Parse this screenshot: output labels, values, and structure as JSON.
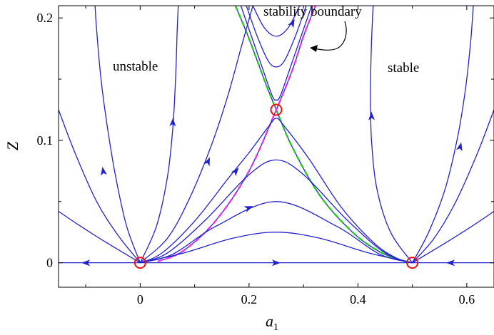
{
  "chart_data": {
    "type": "line",
    "title": "",
    "xlabel": "a",
    "xlabel_subscript": "1",
    "ylabel": "Z",
    "xlim": [
      -0.15,
      0.65
    ],
    "ylim": [
      -0.02,
      0.21
    ],
    "xticks": [
      0,
      0.2,
      0.4,
      0.6
    ],
    "xtick_labels": [
      "0",
      "0.2",
      "0.4",
      "0.6"
    ],
    "yticks": [
      0,
      0.1,
      0.2
    ],
    "ytick_labels": [
      "0",
      "0.1",
      "0.2"
    ],
    "grid": false,
    "colors": {
      "trajectory": "#2222cc",
      "boundary_green": "#22cc22",
      "boundary_magenta": "#ee33ee",
      "fixed_point": "#ee1111"
    },
    "annotations": {
      "unstable": "unstable",
      "stable": "stable",
      "boundary": "stability boundary"
    },
    "fixed_points": [
      {
        "x": 0,
        "y": 0
      },
      {
        "x": 0.25,
        "y": 0.125
      },
      {
        "x": 0.5,
        "y": 0
      }
    ],
    "series": [
      {
        "values": [
          [
            0.175,
            0.21
          ],
          [
            0.2,
            0.183
          ],
          [
            0.23,
            0.147
          ],
          [
            0.25,
            0.125
          ],
          [
            0.28,
            0.094
          ],
          [
            0.33,
            0.055
          ],
          [
            0.39,
            0.025
          ],
          [
            0.44,
            0.009
          ],
          [
            0.48,
            0.002
          ],
          [
            0.5,
            0
          ]
        ],
        "role": "separatrix",
        "dashed": "green"
      },
      {
        "values": [
          [
            0.032,
            0.001
          ],
          [
            0.08,
            0.01
          ],
          [
            0.14,
            0.035
          ],
          [
            0.2,
            0.075
          ],
          [
            0.25,
            0.125
          ],
          [
            0.28,
            0.158
          ],
          [
            0.3,
            0.185
          ],
          [
            0.322,
            0.21
          ]
        ],
        "role": "separatrix",
        "dashed": "magenta"
      },
      {
        "values": [
          [
            0.207,
            0.21
          ],
          [
            0.228,
            0.192
          ],
          [
            0.25,
            0.185
          ],
          [
            0.272,
            0.192
          ],
          [
            0.293,
            0.21
          ]
        ],
        "arrow": [
          0.28,
          0.196
        ]
      },
      {
        "values": [
          [
            0.195,
            0.21
          ],
          [
            0.215,
            0.185
          ],
          [
            0.235,
            0.165
          ],
          [
            0.25,
            0.16
          ],
          [
            0.265,
            0.165
          ],
          [
            0.285,
            0.185
          ],
          [
            0.305,
            0.21
          ]
        ]
      },
      {
        "values": [
          [
            0.185,
            0.21
          ],
          [
            0.22,
            0.165
          ],
          [
            0.242,
            0.137
          ],
          [
            0.25,
            0.133
          ],
          [
            0.258,
            0.137
          ],
          [
            0.28,
            0.165
          ],
          [
            0.315,
            0.21
          ]
        ]
      },
      {
        "values": [
          [
            0,
            0
          ],
          [
            0.04,
            0.008
          ],
          [
            0.1,
            0.034
          ],
          [
            0.16,
            0.068
          ],
          [
            0.2,
            0.09
          ],
          [
            0.237,
            0.112
          ],
          [
            0.25,
            0.118
          ],
          [
            0.264,
            0.112
          ],
          [
            0.31,
            0.085
          ],
          [
            0.37,
            0.045
          ],
          [
            0.43,
            0.016
          ],
          [
            0.47,
            0.004
          ],
          [
            0.5,
            0
          ]
        ],
        "arrow": [
          0.176,
          0.075
        ]
      },
      {
        "values": [
          [
            0,
            0
          ],
          [
            0.05,
            0.008
          ],
          [
            0.12,
            0.035
          ],
          [
            0.2,
            0.072
          ],
          [
            0.25,
            0.084
          ],
          [
            0.3,
            0.072
          ],
          [
            0.38,
            0.035
          ],
          [
            0.45,
            0.008
          ],
          [
            0.5,
            0
          ]
        ]
      },
      {
        "values": [
          [
            0,
            0
          ],
          [
            0.06,
            0.007
          ],
          [
            0.14,
            0.03
          ],
          [
            0.25,
            0.05
          ],
          [
            0.36,
            0.03
          ],
          [
            0.44,
            0.007
          ],
          [
            0.5,
            0
          ]
        ],
        "arrow": [
          0.2,
          0.045
        ]
      },
      {
        "values": [
          [
            0,
            0
          ],
          [
            0.08,
            0.008
          ],
          [
            0.17,
            0.02
          ],
          [
            0.25,
            0.025
          ],
          [
            0.33,
            0.02
          ],
          [
            0.42,
            0.008
          ],
          [
            0.5,
            0
          ]
        ]
      },
      {
        "values": [
          [
            0,
            0
          ],
          [
            0.05,
            0.02
          ],
          [
            0.09,
            0.052
          ],
          [
            0.13,
            0.095
          ],
          [
            0.16,
            0.135
          ],
          [
            0.185,
            0.175
          ],
          [
            0.207,
            0.21
          ]
        ],
        "arrow": [
          0.125,
          0.083
        ]
      },
      {
        "values": [
          [
            0,
            0
          ],
          [
            0.03,
            0.03
          ],
          [
            0.05,
            0.07
          ],
          [
            0.06,
            0.11
          ],
          [
            0.065,
            0.15
          ],
          [
            0.068,
            0.19
          ],
          [
            0.07,
            0.21
          ]
        ],
        "arrow": [
          0.06,
          0.115
        ]
      },
      {
        "values": [
          [
            0,
            0
          ],
          [
            -0.025,
            0.03
          ],
          [
            -0.045,
            0.07
          ],
          [
            -0.06,
            0.11
          ],
          [
            -0.072,
            0.15
          ],
          [
            -0.08,
            0.19
          ],
          [
            -0.083,
            0.21
          ]
        ],
        "arrow": [
          -0.068,
          0.075
        ]
      },
      {
        "values": [
          [
            0,
            0
          ],
          [
            -0.04,
            0.022
          ],
          [
            -0.08,
            0.05
          ],
          [
            -0.12,
            0.09
          ],
          [
            -0.15,
            0.125
          ]
        ]
      },
      {
        "values": [
          [
            0,
            0
          ],
          [
            -0.06,
            0.016
          ],
          [
            -0.11,
            0.03
          ],
          [
            -0.15,
            0.042
          ]
        ]
      },
      {
        "values": [
          [
            0.5,
            0
          ],
          [
            0.46,
            0.025
          ],
          [
            0.435,
            0.06
          ],
          [
            0.425,
            0.1
          ],
          [
            0.423,
            0.14
          ],
          [
            0.425,
            0.18
          ],
          [
            0.428,
            0.21
          ]
        ],
        "arrow": [
          0.425,
          0.12
        ]
      },
      {
        "values": [
          [
            0.5,
            0
          ],
          [
            0.53,
            0.025
          ],
          [
            0.56,
            0.06
          ],
          [
            0.582,
            0.1
          ],
          [
            0.597,
            0.14
          ],
          [
            0.607,
            0.18
          ],
          [
            0.612,
            0.21
          ]
        ],
        "arrow": [
          0.588,
          0.095
        ]
      },
      {
        "values": [
          [
            0.5,
            0
          ],
          [
            0.54,
            0.02
          ],
          [
            0.58,
            0.05
          ],
          [
            0.62,
            0.09
          ],
          [
            0.65,
            0.125
          ]
        ]
      },
      {
        "values": [
          [
            0.5,
            0
          ],
          [
            0.56,
            0.016
          ],
          [
            0.61,
            0.03
          ],
          [
            0.65,
            0.042
          ]
        ]
      },
      {
        "values": [
          [
            -0.15,
            0
          ],
          [
            0,
            0
          ]
        ],
        "arrow": [
          -0.1,
          0
        ],
        "arrow_dir": "left"
      },
      {
        "values": [
          [
            0,
            0
          ],
          [
            0.5,
            0
          ]
        ],
        "arrow": [
          0.25,
          0
        ],
        "arrow_dir": "right"
      },
      {
        "values": [
          [
            0.5,
            0
          ],
          [
            0.65,
            0
          ]
        ],
        "arrow": [
          0.57,
          0
        ],
        "arrow_dir": "left"
      }
    ]
  }
}
